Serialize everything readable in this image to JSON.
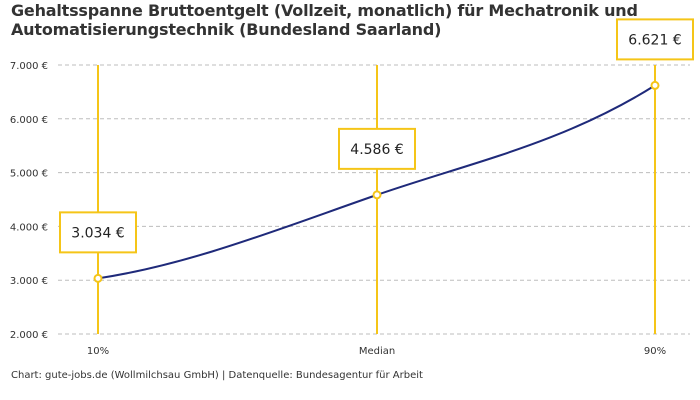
{
  "title": "Gehaltsspanne Bruttoentgelt (Vollzeit, monatlich) für Mechatronik und Automatisierungstechnik (Bundesland Saarland)",
  "source": "Chart: gute-jobs.de (Wollmilchsau GmbH) | Datenquelle: Bundesagentur für Arbeit",
  "colors": {
    "line": "#1f2a7a",
    "marker": "#f5c518",
    "grid": "#bdbdbd"
  },
  "chart_data": {
    "type": "line",
    "title": "Gehaltsspanne Bruttoentgelt (Vollzeit, monatlich) für Mechatronik und Automatisierungstechnik (Bundesland Saarland)",
    "categories": [
      "10%",
      "Median",
      "90%"
    ],
    "values": [
      3034,
      4586,
      6621
    ],
    "value_labels": [
      "3.034 €",
      "4.586 €",
      "6.621 €"
    ],
    "yticks": [
      2000,
      3000,
      4000,
      5000,
      6000,
      7000
    ],
    "ytick_labels": [
      "2.000 €",
      "3.000 €",
      "4.000 €",
      "5.000 €",
      "6.000 €",
      "7.000 €"
    ],
    "ylim": [
      2000,
      7000
    ],
    "grid": true,
    "legend": "none"
  }
}
